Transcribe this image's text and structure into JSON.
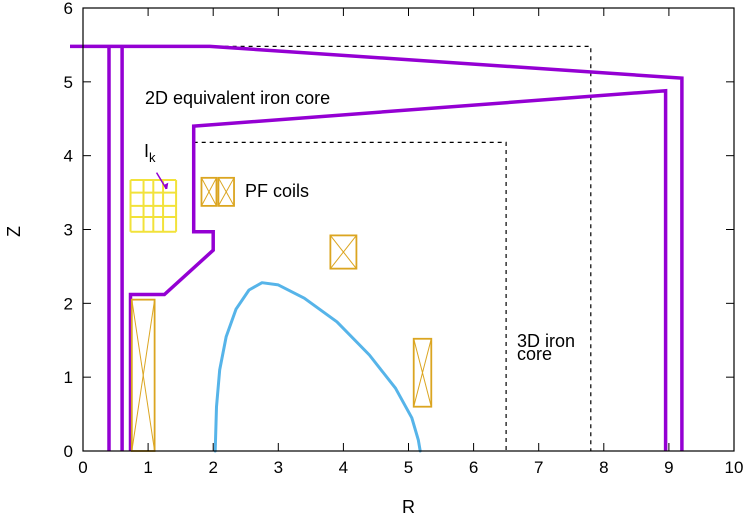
{
  "chart_data": {
    "type": "diagram",
    "title": "",
    "xlabel": "R",
    "ylabel": "Z",
    "xlim": [
      0,
      10
    ],
    "ylim": [
      0,
      6
    ],
    "x_ticks": [
      0,
      1,
      2,
      3,
      4,
      5,
      6,
      7,
      8,
      9,
      10
    ],
    "y_ticks": [
      0,
      1,
      2,
      3,
      4,
      5,
      6
    ],
    "annotations": {
      "equivalent_core": "2D equivalent iron core",
      "current_label_base": "I",
      "current_label_subscript": "k",
      "pf_coils": "PF coils",
      "iron_core_3d_line1": "3D iron",
      "iron_core_3d_line2": "core"
    },
    "colors": {
      "core_2d": "#9400d3",
      "coils": "#dba520",
      "grid_conductors": "#f2e23a",
      "plasma": "#56b4e9",
      "core_3d": "#000000"
    },
    "core_2d_outline": [
      [
        0.4,
        0
      ],
      [
        0.4,
        5.48
      ],
      [
        -0.2,
        5.48
      ],
      [
        1.95,
        5.48
      ],
      [
        9.2,
        5.05
      ],
      [
        9.2,
        0
      ]
    ],
    "core_2d_inner": [
      [
        0.6,
        0
      ],
      [
        0.6,
        5.48
      ]
    ],
    "core_2d_window": [
      [
        0.73,
        0
      ],
      [
        0.73,
        2.12
      ],
      [
        1.25,
        2.12
      ],
      [
        2.0,
        2.72
      ],
      [
        2.0,
        2.97
      ],
      [
        1.7,
        2.97
      ],
      [
        1.7,
        4.4
      ],
      [
        8.95,
        4.88
      ],
      [
        8.95,
        0
      ]
    ],
    "core_3d": [
      [
        0.7,
        5.48
      ],
      [
        7.8,
        5.48
      ],
      [
        7.8,
        0
      ]
    ],
    "core_3d_inner": [
      [
        1.7,
        4.18
      ],
      [
        6.5,
        4.18
      ],
      [
        6.5,
        0
      ]
    ],
    "coils": [
      {
        "r0": 0.75,
        "r1": 1.1,
        "z0": 0.0,
        "z1": 2.05
      },
      {
        "r0": 1.82,
        "r1": 2.05,
        "z0": 3.32,
        "z1": 3.7
      },
      {
        "r0": 2.08,
        "r1": 2.32,
        "z0": 3.32,
        "z1": 3.7
      },
      {
        "r0": 3.8,
        "r1": 4.2,
        "z0": 2.47,
        "z1": 2.92
      },
      {
        "r0": 5.08,
        "r1": 5.35,
        "z0": 0.6,
        "z1": 1.52
      }
    ],
    "conductor_grid": {
      "r": [
        0.73,
        0.93,
        1.08,
        1.23,
        1.43
      ],
      "z": [
        2.97,
        3.17,
        3.32,
        3.5,
        3.67
      ]
    },
    "plasma_boundary": [
      [
        2.03,
        0.0
      ],
      [
        2.05,
        0.6
      ],
      [
        2.1,
        1.1
      ],
      [
        2.2,
        1.55
      ],
      [
        2.35,
        1.92
      ],
      [
        2.55,
        2.18
      ],
      [
        2.75,
        2.28
      ],
      [
        3.0,
        2.25
      ],
      [
        3.4,
        2.07
      ],
      [
        3.9,
        1.75
      ],
      [
        4.4,
        1.3
      ],
      [
        4.8,
        0.85
      ],
      [
        5.05,
        0.45
      ],
      [
        5.15,
        0.15
      ],
      [
        5.18,
        0.0
      ]
    ]
  }
}
